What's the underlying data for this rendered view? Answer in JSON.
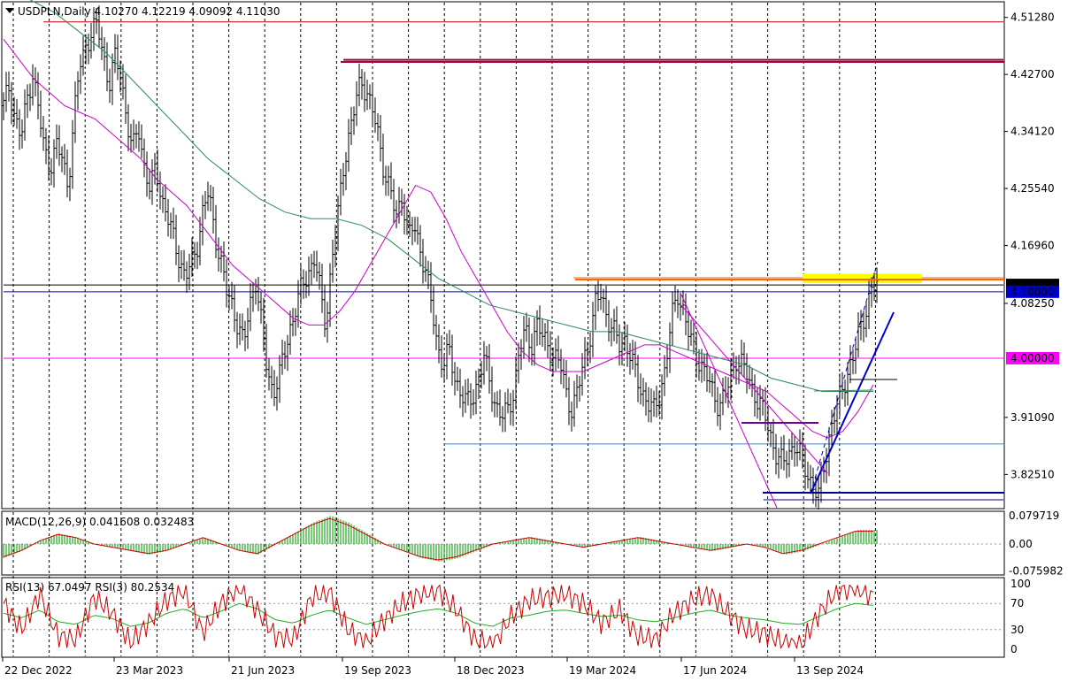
{
  "chart_data": [
    {
      "type": "ohlc",
      "title": "USDPLN,Daily",
      "symbol": "USDPLN",
      "timeframe": "Daily",
      "ohlc": {
        "open": "4.10270",
        "high": "4.12219",
        "low": "4.09092",
        "close": "4.11030"
      },
      "ylim": [
        3.775,
        4.535
      ],
      "y_ticks": [
        "4.51280",
        "4.42700",
        "4.34120",
        "4.25540",
        "4.16960",
        "4.08250",
        "3.91090",
        "3.82510"
      ],
      "x_ticks": [
        "22 Dec 2022",
        "23 Mar 2023",
        "21 Jun 2023",
        "19 Sep 2023",
        "18 Dec 2023",
        "19 Mar 2024",
        "17 Jun 2024",
        "13 Sep 2024"
      ],
      "price_labels": [
        {
          "text": "4.11030",
          "value": 4.1103,
          "bg": "#000000",
          "fg": "#ffffff"
        },
        {
          "text": "4.10000",
          "value": 4.1,
          "bg": "#0000cd",
          "fg": "#ffffff"
        },
        {
          "text": "4.00000",
          "value": 4.0,
          "bg": "#ff00ff",
          "fg": "#ffffff"
        }
      ],
      "series_close": [
        4.38,
        4.41,
        4.36,
        4.33,
        4.39,
        4.43,
        4.37,
        4.31,
        4.29,
        4.32,
        4.3,
        4.26,
        4.36,
        4.44,
        4.47,
        4.49,
        4.5,
        4.46,
        4.41,
        4.45,
        4.43,
        4.36,
        4.31,
        4.35,
        4.29,
        4.25,
        4.29,
        4.24,
        4.21,
        4.18,
        4.15,
        4.12,
        4.14,
        4.17,
        4.22,
        4.25,
        4.19,
        4.15,
        4.1,
        4.08,
        4.05,
        4.02,
        4.08,
        4.12,
        4.05,
        3.98,
        3.95,
        3.97,
        4.01,
        4.05,
        4.08,
        4.11,
        4.13,
        4.15,
        4.1,
        4.05,
        4.15,
        4.21,
        4.29,
        4.34,
        4.38,
        4.42,
        4.4,
        4.37,
        4.33,
        4.28,
        4.25,
        4.21,
        4.25,
        4.18,
        4.2,
        4.17,
        4.13,
        4.08,
        4.02,
        3.99,
        4.01,
        3.97,
        3.95,
        3.93,
        3.94,
        3.97,
        4.0,
        3.96,
        3.93,
        3.91,
        3.92,
        3.95,
        4.01,
        4.04,
        4.02,
        4.05,
        4.03,
        4.02,
        4.0,
        3.99,
        3.95,
        3.92,
        3.95,
        4.0,
        4.03,
        4.08,
        4.1,
        4.06,
        4.04,
        4.02,
        4.03,
        4.0,
        3.97,
        3.95,
        3.93,
        3.92,
        3.95,
        3.99,
        4.06,
        4.1,
        4.07,
        4.03,
        4.01,
        3.99,
        3.97,
        3.95,
        3.93,
        3.94,
        3.97,
        4.0,
        3.99,
        3.97,
        3.95,
        3.93,
        3.91,
        3.88,
        3.85,
        3.84,
        3.86,
        3.87,
        3.85,
        3.83,
        3.81,
        3.79,
        3.84,
        3.89,
        3.92,
        3.95,
        3.98,
        4.0,
        4.04,
        4.07,
        4.1,
        4.11
      ],
      "indicator_lines": [
        {
          "name": "MA fast",
          "color": "#cc00cc",
          "values": [
            4.48,
            4.45,
            4.42,
            4.4,
            4.38,
            4.37,
            4.36,
            4.34,
            4.32,
            4.3,
            4.27,
            4.25,
            4.23,
            4.2,
            4.17,
            4.14,
            4.12,
            4.1,
            4.08,
            4.06,
            4.05,
            4.05,
            4.07,
            4.1,
            4.14,
            4.18,
            4.22,
            4.26,
            4.25,
            4.21,
            4.16,
            4.12,
            4.08,
            4.04,
            4.01,
            3.99,
            3.98,
            3.98,
            3.98,
            3.99,
            4.0,
            4.01,
            4.02,
            4.02,
            4.01,
            4.0,
            3.99,
            3.98,
            3.97,
            3.96,
            3.95,
            3.93,
            3.91,
            3.89,
            3.88,
            3.89,
            3.92,
            3.96
          ]
        },
        {
          "name": "MA slow",
          "color": "#2e8b57",
          "values": [
            4.56,
            4.54,
            4.52,
            4.49,
            4.46,
            4.42,
            4.38,
            4.34,
            4.3,
            4.27,
            4.24,
            4.22,
            4.21,
            4.21,
            4.2,
            4.18,
            4.15,
            4.12,
            4.1,
            4.08,
            4.07,
            4.06,
            4.05,
            4.04,
            4.04,
            4.03,
            4.02,
            4.01,
            4.0,
            3.99,
            3.97,
            3.96,
            3.95,
            3.95,
            3.95
          ]
        }
      ],
      "hlines": [
        {
          "value": 4.506,
          "color": "#cc0000",
          "x0_frac": 0.04
        },
        {
          "value": 4.449,
          "color": "#a0003c",
          "x0_frac": 0.34
        },
        {
          "value": 4.121,
          "color": "#ff6600",
          "x0_frac": 0.57
        },
        {
          "value": 4.1103,
          "color": "#000000",
          "x0_frac": 0
        },
        {
          "value": 4.1,
          "color": "#0000cd",
          "x0_frac": 0
        },
        {
          "value": 4.0,
          "color": "#ff00ff",
          "x0_frac": 0
        },
        {
          "value": 3.871,
          "color": "#1e90ff",
          "x0_frac": 0.44
        },
        {
          "value": 3.787,
          "color": "#00008b",
          "x0_frac": 0.76
        }
      ],
      "highlight_zone": {
        "value_top": 4.127,
        "value_bottom": 4.113,
        "color": "#ffff00"
      }
    },
    {
      "type": "histogram",
      "title": "MACD(12,26,9) 0.041608 0.032483",
      "ylim": [
        -0.085,
        0.09
      ],
      "y_ticks": [
        "0.079719",
        "0.00",
        "-0.075982"
      ],
      "signal_color": "#cc0000",
      "hist_color": "#22aa22",
      "hist_values": [
        -0.04,
        -0.02,
        0.01,
        0.03,
        0.02,
        0.0,
        -0.01,
        -0.02,
        -0.03,
        -0.02,
        0.0,
        0.02,
        0.0,
        -0.02,
        -0.03,
        0.0,
        0.03,
        0.06,
        0.08,
        0.06,
        0.03,
        0.0,
        -0.02,
        -0.04,
        -0.05,
        -0.04,
        -0.02,
        0.0,
        0.01,
        0.02,
        0.01,
        0.0,
        -0.01,
        0.0,
        0.01,
        0.02,
        0.01,
        0.0,
        -0.01,
        -0.02,
        -0.01,
        0.0,
        -0.01,
        -0.03,
        -0.02,
        0.0,
        0.02,
        0.04,
        0.04
      ]
    },
    {
      "type": "line",
      "title": "RSI(13) 67.0497 RSI(3) 80.2534",
      "ylim": [
        0,
        100
      ],
      "y_ticks": [
        "100",
        "70",
        "30",
        "0"
      ],
      "series": [
        {
          "name": "RSI(13)",
          "color": "#22aa22",
          "values": [
            55,
            48,
            60,
            42,
            38,
            52,
            47,
            35,
            40,
            55,
            62,
            48,
            58,
            70,
            62,
            45,
            40,
            52,
            60,
            48,
            38,
            45,
            52,
            58,
            62,
            55,
            40,
            35,
            48,
            52,
            58,
            60,
            55,
            50,
            52,
            45,
            42,
            48,
            55,
            60,
            52,
            48,
            45,
            40,
            38,
            50,
            62,
            70,
            67
          ]
        },
        {
          "name": "RSI(3)",
          "color": "#cc0000",
          "values": [
            70,
            30,
            85,
            20,
            15,
            80,
            55,
            10,
            40,
            75,
            90,
            25,
            70,
            95,
            60,
            20,
            15,
            80,
            88,
            30,
            10,
            45,
            70,
            85,
            90,
            60,
            15,
            5,
            50,
            75,
            80,
            85,
            70,
            40,
            60,
            20,
            15,
            55,
            75,
            85,
            55,
            30,
            25,
            10,
            5,
            55,
            90,
            95,
            80
          ]
        }
      ]
    }
  ]
}
